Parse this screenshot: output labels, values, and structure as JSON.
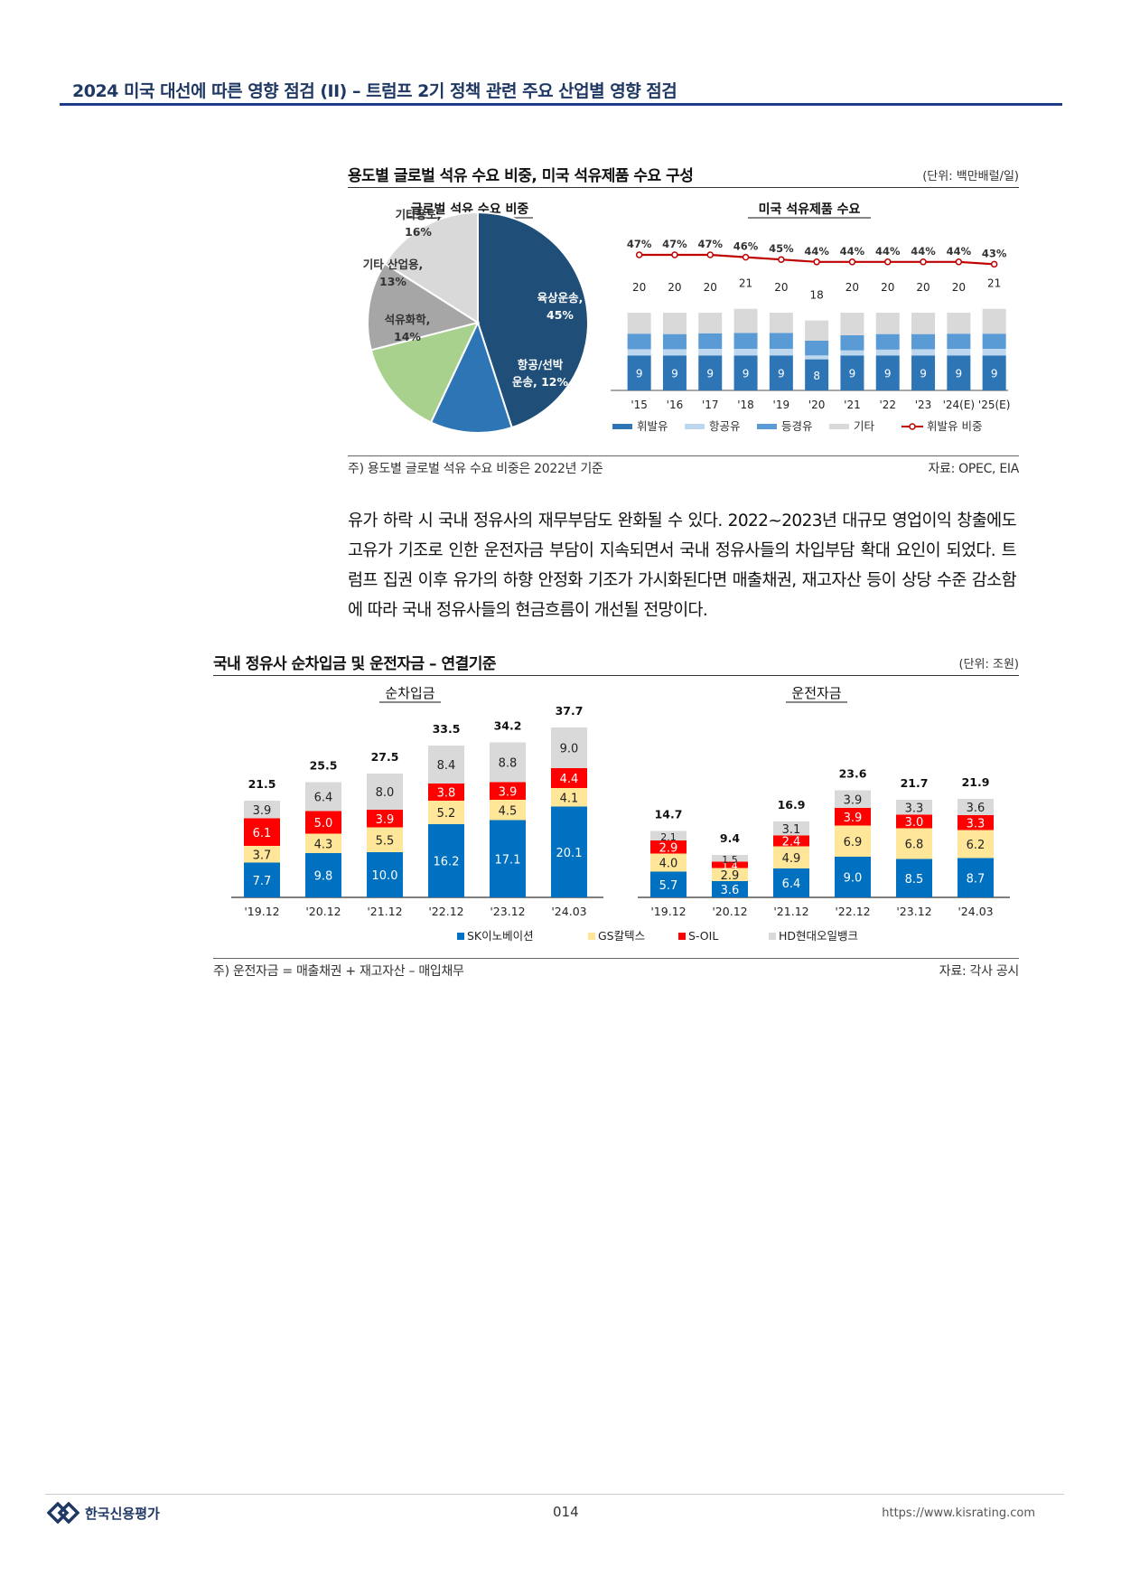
{
  "header": {
    "title": "2024 미국 대선에 따른 영향 점검 (II) – 트럼프 2기 정책 관련 주요 산업별 영향 점검"
  },
  "section1": {
    "title": "용도별 글로벌 석유 수요 비중, 미국 석유제품 수요 구성",
    "unit": "(단위: 백만배럴/일)",
    "note": "주) 용도별 글로벌 석유 수요 비중은 2022년 기준",
    "source": "자료: OPEC, EIA"
  },
  "paragraph": "유가 하락 시 국내 정유사의 재무부담도 완화될 수 있다. 2022~2023년 대규모 영업이익 창출에도 고유가 기조로 인한 운전자금 부담이 지속되면서 국내 정유사들의 차입부담 확대 요인이 되었다. 트럼프 집권 이후 유가의 하향 안정화 기조가 가시화된다면 매출채권, 재고자산 등이 상당 수준 감소함에 따라 국내 정유사들의 현금흐름이 개선될 전망이다.",
  "section2": {
    "title": "국내 정유사 순차입금 및 운전자금 – 연결기준",
    "unit": "(단위: 조원)",
    "note": "주) 운전자금 = 매출채권 + 재고자산 – 매입채무",
    "source": "자료: 각사 공시"
  },
  "footer": {
    "company": "한국신용평가",
    "page": "014",
    "url": "https://www.kisrating.com"
  },
  "chart_data": [
    {
      "type": "pie",
      "title": "글로벌 석유 수요 비중",
      "slices": [
        {
          "label": "육상운송,",
          "pct_label": "45%",
          "value": 45,
          "color": "#1f4e79"
        },
        {
          "label": "항공/선박",
          "label2": "운송, 12%",
          "value": 12,
          "color": "#2e75b6"
        },
        {
          "label": "석유화학,",
          "pct_label": "14%",
          "value": 14,
          "color": "#a9d18e"
        },
        {
          "label": "기타 산업용,",
          "pct_label": "13%",
          "value": 13,
          "color": "#a6a6a6"
        },
        {
          "label": "기타용도,",
          "pct_label": "16%",
          "value": 16,
          "color": "#d9d9d9"
        }
      ]
    },
    {
      "type": "bar",
      "stacked": true,
      "title": "미국 석유제품 수요",
      "categories": [
        "'15",
        "'16",
        "'17",
        "'18",
        "'19",
        "'20",
        "'21",
        "'22",
        "'23",
        "'24(E)",
        "'25(E)"
      ],
      "totals": [
        20,
        20,
        20,
        21,
        20,
        18,
        20,
        20,
        20,
        20,
        21
      ],
      "series": [
        {
          "name": "휘발유",
          "values": [
            9,
            9,
            9,
            9,
            9,
            8,
            9,
            9,
            9,
            9,
            9
          ],
          "color": "#2e75b6"
        },
        {
          "name": "항공유",
          "values": [
            1.6,
            1.6,
            1.7,
            1.7,
            1.7,
            1.0,
            1.3,
            1.5,
            1.6,
            1.7,
            1.7
          ],
          "color": "#bdd7ee"
        },
        {
          "name": "등경유",
          "values": [
            4.0,
            3.9,
            4.0,
            4.1,
            4.1,
            3.8,
            3.9,
            4.0,
            3.9,
            3.9,
            3.9
          ],
          "color": "#5b9bd5"
        },
        {
          "name": "기타",
          "values": [
            5.4,
            5.5,
            5.3,
            6.2,
            5.2,
            5.2,
            5.8,
            5.5,
            5.5,
            5.4,
            6.4
          ],
          "color": "#d9d9d9"
        }
      ],
      "ratio": {
        "name": "휘발유 비중",
        "values": [
          47,
          47,
          47,
          46,
          45,
          44,
          44,
          44,
          44,
          44,
          43
        ],
        "labels": [
          "47%",
          "47%",
          "47%",
          "46%",
          "45%",
          "44%",
          "44%",
          "44%",
          "44%",
          "44%",
          "43%"
        ],
        "color": "#c00000"
      },
      "legend": [
        "휘발유",
        "항공유",
        "등경유",
        "기타",
        "휘발유 비중"
      ]
    },
    {
      "type": "bar",
      "stacked": true,
      "title": "순차입금",
      "categories": [
        "'19.12",
        "'20.12",
        "'21.12",
        "'22.12",
        "'23.12",
        "'24.03"
      ],
      "totals": [
        "21.5",
        "25.5",
        "27.5",
        "33.5",
        "34.2",
        "37.7"
      ],
      "series": [
        {
          "name": "SK이노베이션",
          "values": [
            7.7,
            9.8,
            10.0,
            16.2,
            17.1,
            20.1
          ],
          "labels": [
            "7.7",
            "9.8",
            "10.0",
            "16.2",
            "17.1",
            "20.1"
          ],
          "color": "#0070c0"
        },
        {
          "name": "GS칼텍스",
          "values": [
            3.7,
            4.3,
            5.5,
            5.2,
            4.5,
            4.1
          ],
          "labels": [
            "3.7",
            "4.3",
            "5.5",
            "5.2",
            "4.5",
            "4.1"
          ],
          "color": "#ffe699"
        },
        {
          "name": "S-OIL",
          "values": [
            6.1,
            5.0,
            3.9,
            3.8,
            3.9,
            4.4
          ],
          "labels": [
            "6.1",
            "5.0",
            "3.9",
            "3.8",
            "3.9",
            "4.4"
          ],
          "color": "#ff0000"
        },
        {
          "name": "HD현대오일뱅크",
          "values": [
            3.9,
            6.4,
            8.0,
            8.4,
            8.8,
            9.0
          ],
          "labels": [
            "3.9",
            "6.4",
            "8.0",
            "8.4",
            "8.8",
            "9.0"
          ],
          "color": "#d9d9d9"
        }
      ]
    },
    {
      "type": "bar",
      "stacked": true,
      "title": "운전자금",
      "categories": [
        "'19.12",
        "'20.12",
        "'21.12",
        "'22.12",
        "'23.12",
        "'24.03"
      ],
      "totals": [
        "14.7",
        "9.4",
        "16.9",
        "23.6",
        "21.7",
        "21.9"
      ],
      "series": [
        {
          "name": "SK이노베이션",
          "values": [
            5.7,
            3.6,
            6.4,
            9.0,
            8.5,
            8.7
          ],
          "labels": [
            "5.7",
            "3.6",
            "6.4",
            "9.0",
            "8.5",
            "8.7"
          ],
          "color": "#0070c0"
        },
        {
          "name": "GS칼텍스",
          "values": [
            4.0,
            2.9,
            4.9,
            6.9,
            6.8,
            6.2
          ],
          "labels": [
            "4.0",
            "2.9",
            "4.9",
            "6.9",
            "6.8",
            "6.2"
          ],
          "color": "#ffe699"
        },
        {
          "name": "S-OIL",
          "values": [
            2.9,
            1.4,
            2.4,
            3.9,
            3.0,
            3.3
          ],
          "labels": [
            "2.9",
            "1.4",
            "2.4",
            "3.9",
            "3.0",
            "3.3"
          ],
          "color": "#ff0000"
        },
        {
          "name": "HD현대오일뱅크",
          "values": [
            2.1,
            1.5,
            3.1,
            3.9,
            3.3,
            3.6
          ],
          "labels": [
            "2.1",
            "1.5",
            "3.1",
            "3.9",
            "3.3",
            "3.6"
          ],
          "color": "#d9d9d9"
        }
      ],
      "legend": [
        "SK이노베이션",
        "GS칼텍스",
        "S-OIL",
        "HD현대오일뱅크"
      ]
    }
  ]
}
